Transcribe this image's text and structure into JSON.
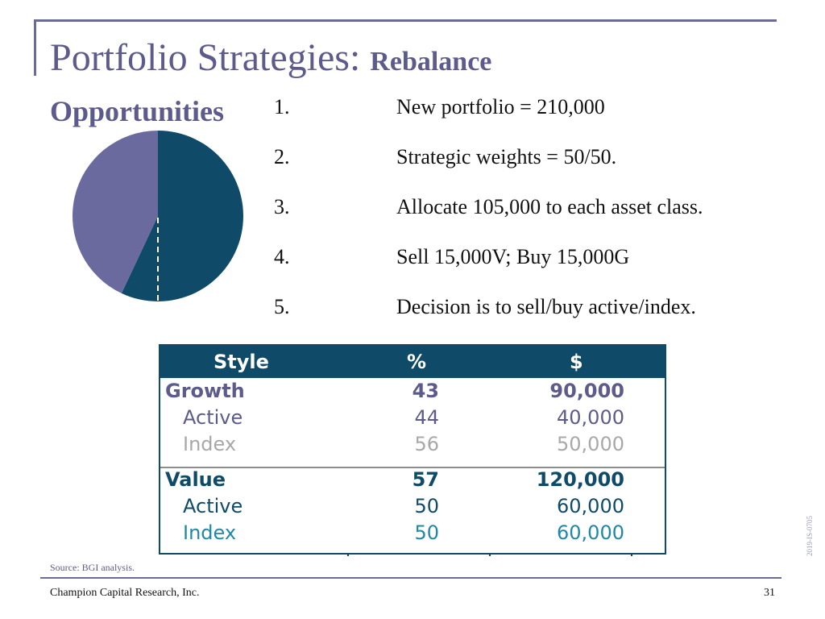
{
  "slide": {
    "title_main": "Portfolio Strategies:",
    "title_bold": "Rebalance",
    "title_line2": "Opportunities",
    "steps": [
      {
        "num": "1.",
        "text": "New portfolio = 210,000"
      },
      {
        "num": "2.",
        "text": "Strategic weights = 50/50."
      },
      {
        "num": "3.",
        "text": "Allocate 105,000 to each asset class."
      },
      {
        "num": "4.",
        "text": "Sell 15,000V; Buy 15,000G"
      },
      {
        "num": "5.",
        "text": "Decision is to sell/buy active/index."
      }
    ],
    "table": {
      "headers": {
        "style": "Style",
        "pct": "%",
        "usd": "$"
      },
      "rows": [
        {
          "style": "Growth",
          "pct": "43",
          "usd": "90,000"
        },
        {
          "style": "Active",
          "pct": "44",
          "usd": "40,000"
        },
        {
          "style": "Index",
          "pct": "56",
          "usd": "50,000"
        },
        {
          "style": "Value",
          "pct": "57",
          "usd": "120,000"
        },
        {
          "style": "Active",
          "pct": "50",
          "usd": "60,000"
        },
        {
          "style": "Index",
          "pct": "50",
          "usd": "60,000"
        }
      ]
    },
    "pie": {
      "slices": [
        {
          "label": "Value",
          "value": 57,
          "color": "#0f4b69"
        },
        {
          "label": "Growth",
          "value": 43,
          "color": "#6a6a9e"
        }
      ]
    },
    "source": "Source: BGI analysis.",
    "footer": "Champion Capital Research, Inc.",
    "page_number": "31",
    "doc_code": "2019-IS-0705"
  },
  "colors": {
    "accent": "#5d5b8b",
    "table_header": "#0f4b69",
    "rule": "#6b6b9a"
  }
}
